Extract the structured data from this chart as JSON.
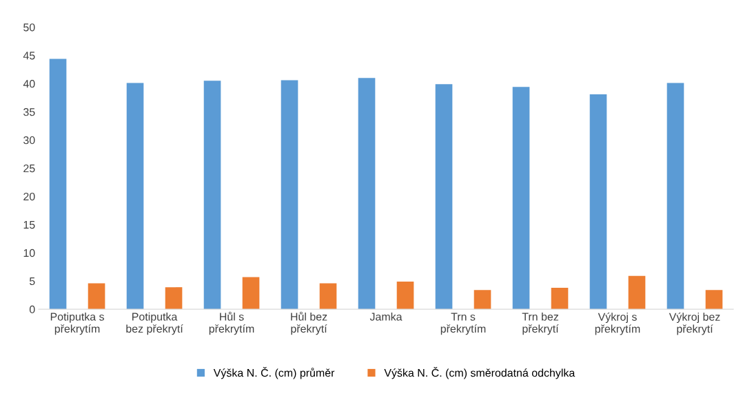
{
  "chart_data": {
    "type": "bar",
    "categories": [
      "Potiputka s\npřekrytím",
      "Potiputka\nbez překrytí",
      "Hůl s\npřekrytím",
      "Hůl bez\npřekrytí",
      "Jamka",
      "Trn s\npřekrytím",
      "Trn bez\npřekrytí",
      "Výkroj s\npřekrytím",
      "Výkroj bez\npřekrytí"
    ],
    "series": [
      {
        "name": "Výška N. Č. (cm) průměr",
        "color": "#5b9bd5",
        "values": [
          44.4,
          40.1,
          40.5,
          40.6,
          41.0,
          39.9,
          39.4,
          38.1,
          40.1
        ]
      },
      {
        "name": "Výška N. Č. (cm) směrodatná odchylka",
        "color": "#ed7d31",
        "values": [
          4.6,
          3.9,
          5.7,
          4.6,
          4.9,
          3.4,
          3.8,
          5.9,
          3.4
        ]
      }
    ],
    "ylim": [
      0,
      50
    ],
    "yticks": [
      0,
      5,
      10,
      15,
      20,
      25,
      30,
      35,
      40,
      45,
      50
    ],
    "grid": false,
    "legend": "bottom"
  }
}
